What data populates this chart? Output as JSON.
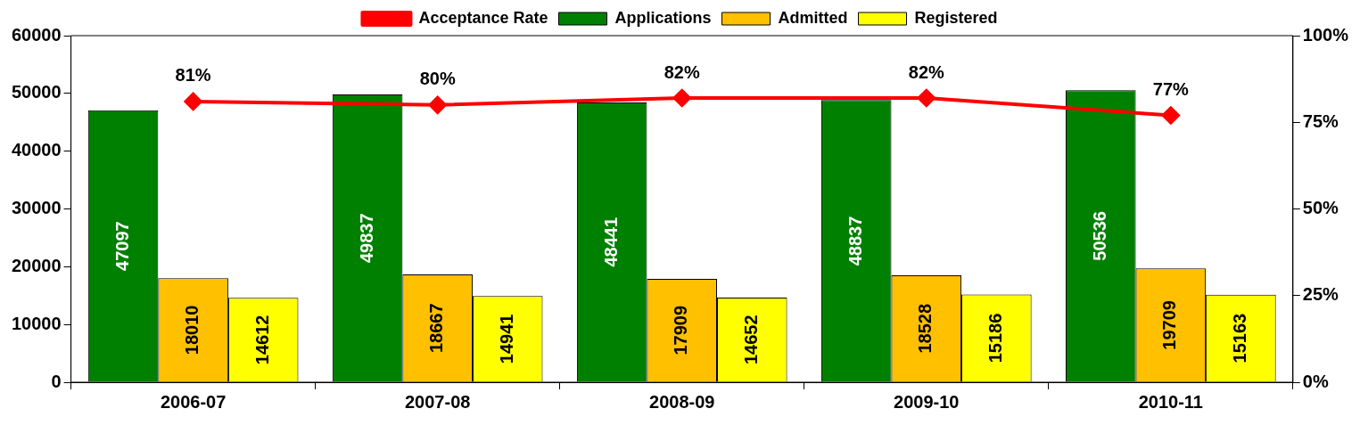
{
  "chart_data": {
    "type": "bar",
    "categories": [
      "2006-07",
      "2007-08",
      "2008-09",
      "2009-10",
      "2010-11"
    ],
    "series": [
      {
        "name": "Applications",
        "color": "#008000",
        "values": [
          47097,
          49837,
          48441,
          48837,
          50536
        ],
        "value_labels": [
          "47097",
          "49837",
          "48441",
          "48837",
          "50536"
        ]
      },
      {
        "name": "Admitted",
        "color": "#ffc000",
        "values": [
          18010,
          18667,
          17909,
          18528,
          19709
        ],
        "value_labels": [
          "18010",
          "18667",
          "17909",
          "18528",
          "19709"
        ]
      },
      {
        "name": "Registered",
        "color": "#ffff00",
        "values": [
          14612,
          14941,
          14652,
          15186,
          15163
        ],
        "value_labels": [
          "14612",
          "14941",
          "14652",
          "15186",
          "15163"
        ]
      },
      {
        "name": "Acceptance Rate",
        "type": "line",
        "axis": "y2",
        "color": "#ff0000",
        "values": [
          81,
          80,
          82,
          82,
          77
        ],
        "value_labels": [
          "81%",
          "80%",
          "82%",
          "82%",
          "77%"
        ]
      }
    ],
    "ylim": [
      0,
      60000
    ],
    "yticks": [
      0,
      10000,
      20000,
      30000,
      40000,
      50000,
      60000
    ],
    "y2lim": [
      0,
      100
    ],
    "y2ticks": [
      {
        "value": 0,
        "label": "0%"
      },
      {
        "value": 25,
        "label": "25%"
      },
      {
        "value": 50,
        "label": "50%"
      },
      {
        "value": 75,
        "label": "75%"
      },
      {
        "value": 100,
        "label": "100%"
      }
    ],
    "grid": false,
    "legend": "top",
    "marker": "diamond",
    "line_style": "solid"
  }
}
